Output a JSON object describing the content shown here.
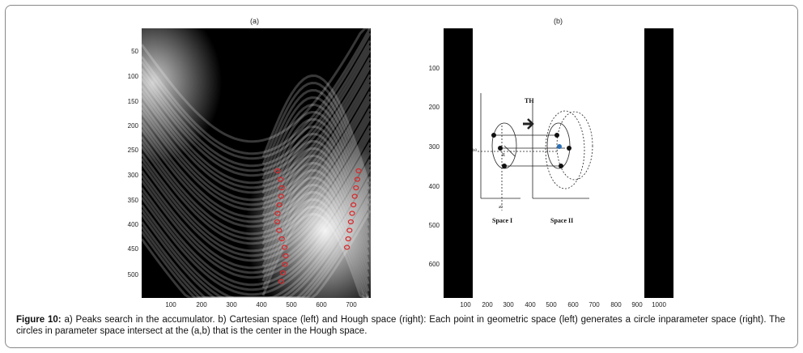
{
  "figure": {
    "panel_a": {
      "title": "(a)",
      "y_ticks": [
        "50",
        "100",
        "150",
        "200",
        "250",
        "300",
        "350",
        "400",
        "450",
        "500"
      ],
      "x_ticks": [
        "100",
        "200",
        "300",
        "400",
        "500",
        "600",
        "700"
      ]
    },
    "panel_b": {
      "title": "(b)",
      "y_ticks": [
        "100",
        "200",
        "300",
        "400",
        "500",
        "600"
      ],
      "x_ticks": [
        "100",
        "200",
        "300",
        "400",
        "500",
        "600",
        "700",
        "800",
        "900",
        "1000"
      ],
      "inset": {
        "arrow_label": "TH",
        "space1_label": "Space I",
        "space2_label": "Space II",
        "r_label": "R",
        "a_label": "a0",
        "b_label": "b0"
      }
    },
    "caption": {
      "label": "Figure 10:",
      "text": " a) Peaks search in the accumulator. b) Cartesian space (left) and Hough space (right): Each point in geometric space (left) generates a circle inparameter space (right). The circles in parameter space intersect at the (a,b) that is the center in the Hough space."
    }
  }
}
